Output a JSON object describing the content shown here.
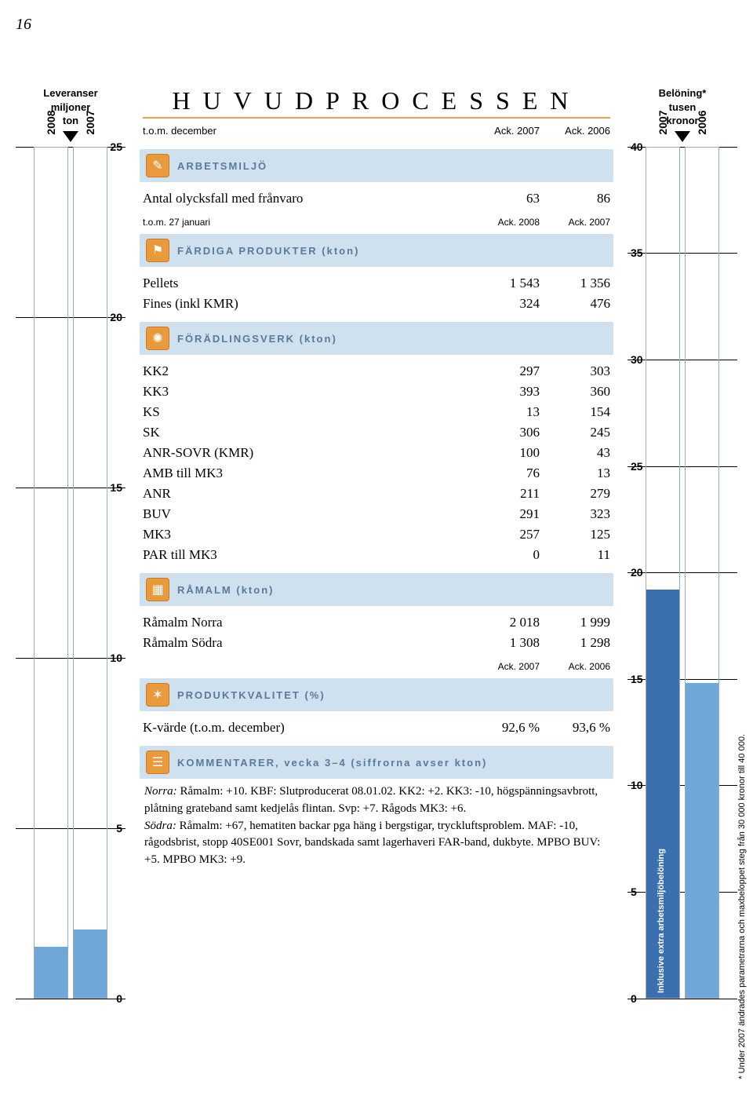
{
  "page_number": "16",
  "left_axis": {
    "title_lines": [
      "Leveranser",
      "miljoner",
      "ton"
    ],
    "max": 25,
    "min": 0,
    "step": 5,
    "years": [
      "2008",
      "2007"
    ],
    "bar_heights_pct": [
      6,
      8
    ],
    "bar_color": "#6fa8d8",
    "bar_outline": "#9aaec0",
    "outline_full_pct": 100
  },
  "right_axis": {
    "title_lines": [
      "Belöning*",
      "tusen",
      "kronor"
    ],
    "max": 40,
    "min": 0,
    "step": 5,
    "years": [
      "2007",
      "2006"
    ],
    "bar_heights_pct": [
      48,
      37
    ],
    "bar2_split_pct": 37,
    "bar_color": "#3a6fb0",
    "bar_color_light": "#6fa8d8",
    "bar_label": "Inklusive extra arbetsmiljöbelöning"
  },
  "center": {
    "title": "HUVUDPROCESSEN",
    "subline": {
      "label": "t.o.m. december",
      "col2": "Ack. 2007",
      "col3": "Ack. 2006"
    },
    "sections": [
      {
        "icon": "✎",
        "title": "ARBETSMILJÖ",
        "rows": [
          {
            "label": "Antal olycksfall med frånvaro",
            "v1": "63",
            "v2": "86"
          }
        ],
        "subline": {
          "label": "t.o.m. 27 januari",
          "col2": "Ack. 2008",
          "col3": "Ack. 2007"
        }
      },
      {
        "icon": "⚑",
        "title": "FÄRDIGA PRODUKTER (kton)",
        "rows": [
          {
            "label": "Pellets",
            "v1": "1 543",
            "v2": "1 356"
          },
          {
            "label": "Fines (inkl KMR)",
            "v1": "324",
            "v2": "476"
          }
        ]
      },
      {
        "icon": "✺",
        "title": "FÖRÄDLINGSVERK (kton)",
        "rows": [
          {
            "label": "KK2",
            "v1": "297",
            "v2": "303"
          },
          {
            "label": "KK3",
            "v1": "393",
            "v2": "360"
          },
          {
            "label": "KS",
            "v1": "13",
            "v2": "154"
          },
          {
            "label": "SK",
            "v1": "306",
            "v2": "245"
          },
          {
            "label": "ANR-SOVR (KMR)",
            "v1": "100",
            "v2": "43"
          },
          {
            "label": "AMB till MK3",
            "v1": "76",
            "v2": "13"
          },
          {
            "label": "ANR",
            "v1": "211",
            "v2": "279"
          },
          {
            "label": "BUV",
            "v1": "291",
            "v2": "323"
          },
          {
            "label": "MK3",
            "v1": "257",
            "v2": "125"
          },
          {
            "label": "PAR till MK3",
            "v1": "0",
            "v2": "11"
          }
        ]
      },
      {
        "icon": "▦",
        "title": "RÅMALM (kton)",
        "rows": [
          {
            "label": "Råmalm Norra",
            "v1": "2 018",
            "v2": "1 999"
          },
          {
            "label": "Råmalm Södra",
            "v1": "1 308",
            "v2": "1 298"
          }
        ],
        "subline": {
          "label": "",
          "col2": "Ack. 2007",
          "col3": "Ack. 2006"
        }
      },
      {
        "icon": "✶",
        "title": "PRODUKTKVALITET (%)",
        "rows": [
          {
            "label": "K-värde (t.o.m. december)",
            "v1": "92,6 %",
            "v2": "93,6 %"
          }
        ]
      },
      {
        "icon": "☰",
        "title": "KOMMENTARER, vecka 3–4 (siffrorna avser kton)",
        "comments": "<em>Norra:</em> Råmalm: +10. KBF: Slutproducerat 08.01.02. KK2: +2. KK3: -10, högspänningsavbrott, plåtning grateband samt kedjelås flintan. Svp: +7. Rågods MK3: +6.<br><em>Södra:</em> Råmalm: +67, hematiten backar pga häng i bergstigar, tryckluftsproblem. MAF: -10, rågodsbrist, stopp 40SE001 Sovr, bandskada samt lagerhaveri FAR-band, dukbyte. MPBO BUV: +5. MPBO MK3: +9."
      }
    ]
  },
  "footnote": "* Under 2007 ändrades parametrarna och maxbeloppet steg från 30 000 kronor till 40 000.",
  "colors": {
    "section_bg": "#cfe0ef",
    "section_text": "#5a7a9a",
    "icon_bg": "#e89a3c",
    "title_rule": "#f0a050"
  }
}
